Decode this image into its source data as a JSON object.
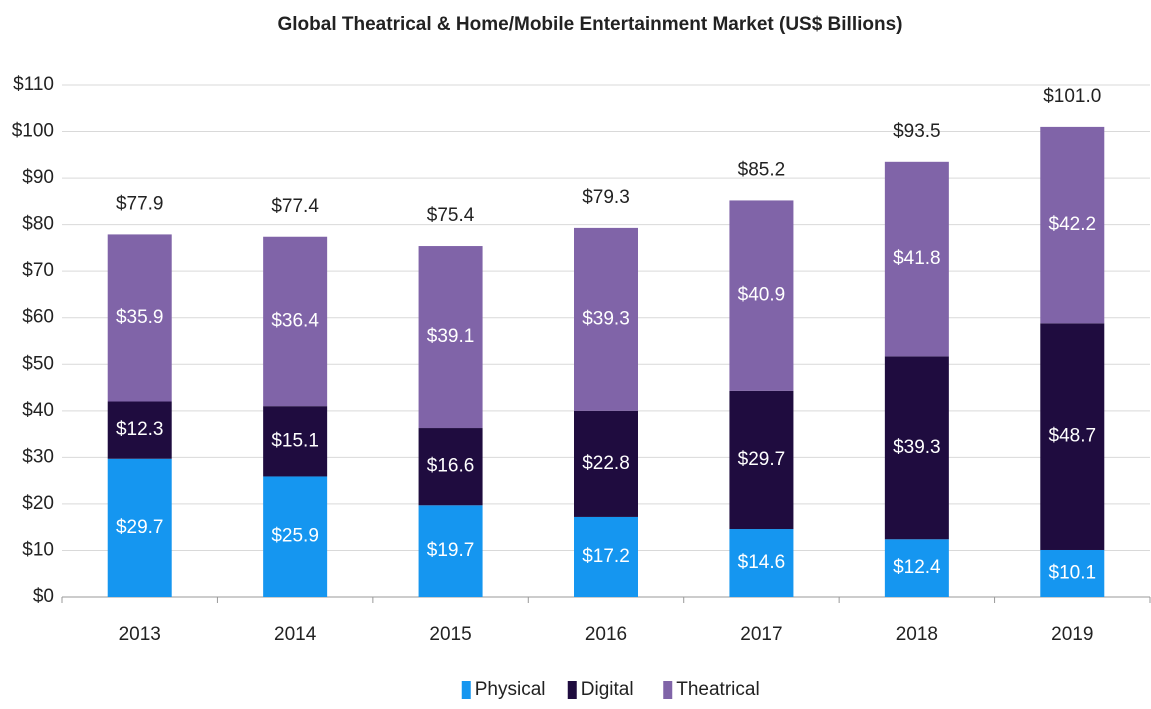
{
  "chart_data": {
    "type": "stacked_bar",
    "title": "Global Theatrical & Home/Mobile Entertainment Market (US$ Billions)",
    "categories": [
      "2013",
      "2014",
      "2015",
      "2016",
      "2017",
      "2018",
      "2019"
    ],
    "series": [
      {
        "name": "Physical",
        "color": "#1596f0",
        "values": [
          29.7,
          25.9,
          19.7,
          17.2,
          14.6,
          12.4,
          10.1
        ],
        "value_labels": [
          "$29.7",
          "$25.9",
          "$19.7",
          "$17.2",
          "$14.6",
          "$12.4",
          "$10.1"
        ]
      },
      {
        "name": "Digital",
        "color": "#1f0c3f",
        "values": [
          12.3,
          15.1,
          16.6,
          22.8,
          29.7,
          39.3,
          48.7
        ],
        "value_labels": [
          "$12.3",
          "$15.1",
          "$16.6",
          "$22.8",
          "$29.7",
          "$39.3",
          "$48.7"
        ]
      },
      {
        "name": "Theatrical",
        "color": "#8064a8",
        "values": [
          35.9,
          36.4,
          39.1,
          39.3,
          40.9,
          41.8,
          42.2
        ],
        "value_labels": [
          "$35.9",
          "$36.4",
          "$39.1",
          "$39.3",
          "$40.9",
          "$41.8",
          "$42.2"
        ]
      }
    ],
    "totals": [
      77.9,
      77.4,
      75.4,
      79.3,
      85.2,
      93.5,
      101.0
    ],
    "total_labels": [
      "$77.9",
      "$77.4",
      "$75.4",
      "$79.3",
      "$85.2",
      "$93.5",
      "$101.0"
    ],
    "ylim": [
      0,
      110
    ],
    "yticks": [
      {
        "value": 0,
        "label": "$0"
      },
      {
        "value": 10,
        "label": "$10"
      },
      {
        "value": 20,
        "label": "$20"
      },
      {
        "value": 30,
        "label": "$30"
      },
      {
        "value": 40,
        "label": "$40"
      },
      {
        "value": 50,
        "label": "$50"
      },
      {
        "value": 60,
        "label": "$60"
      },
      {
        "value": 70,
        "label": "$70"
      },
      {
        "value": 80,
        "label": "$80"
      },
      {
        "value": 90,
        "label": "$90"
      },
      {
        "value": 100,
        "label": "$100"
      },
      {
        "value": 110,
        "label": "$110"
      }
    ],
    "grid": true,
    "legend": "bottom"
  }
}
